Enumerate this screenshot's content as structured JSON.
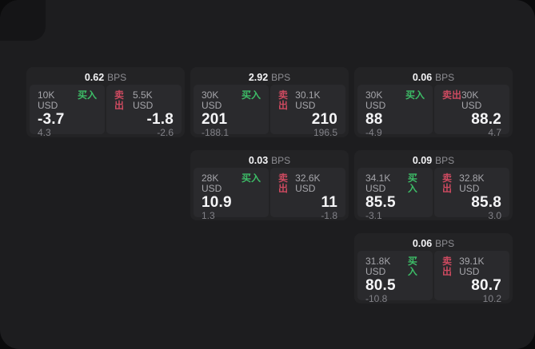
{
  "labels": {
    "buy": "买入",
    "sell": "卖出",
    "bps_unit": "BPS"
  },
  "colors": {
    "panel_bg": "#1d1d1f",
    "card_bg": "#232325",
    "tile_bg": "#2a2a2d",
    "buy_green": "#3dbd67",
    "sell_red": "#ce4a60",
    "value_white": "#f5f5f7",
    "label_gray": "#a6a6ab",
    "delta_gray": "#828288"
  },
  "cards": [
    {
      "col": 1,
      "row": 1,
      "bps": "0.62",
      "buy": {
        "size": "10K USD",
        "price": "-3.7",
        "delta": "4.3"
      },
      "sell": {
        "size": "5.5K USD",
        "price": "-1.8",
        "delta": "-2.6"
      }
    },
    {
      "col": 2,
      "row": 1,
      "bps": "2.92",
      "buy": {
        "size": "30K USD",
        "price": "201",
        "delta": "-188.1"
      },
      "sell": {
        "size": "30.1K USD",
        "price": "210",
        "delta": "196.5"
      }
    },
    {
      "col": 3,
      "row": 1,
      "bps": "0.06",
      "buy": {
        "size": "30K USD",
        "price": "88",
        "delta": "-4.9"
      },
      "sell": {
        "size": "30K USD",
        "price": "88.2",
        "delta": "4.7"
      }
    },
    {
      "col": 2,
      "row": 2,
      "bps": "0.03",
      "buy": {
        "size": "28K USD",
        "price": "10.9",
        "delta": "1.3"
      },
      "sell": {
        "size": "32.6K USD",
        "price": "11",
        "delta": "-1.8"
      }
    },
    {
      "col": 3,
      "row": 2,
      "bps": "0.09",
      "buy": {
        "size": "34.1K USD",
        "price": "85.5",
        "delta": "-3.1"
      },
      "sell": {
        "size": "32.8K USD",
        "price": "85.8",
        "delta": "3.0"
      }
    },
    {
      "col": 3,
      "row": 3,
      "bps": "0.06",
      "buy": {
        "size": "31.8K USD",
        "price": "80.5",
        "delta": "-10.8"
      },
      "sell": {
        "size": "39.1K USD",
        "price": "80.7",
        "delta": "10.2"
      }
    }
  ]
}
